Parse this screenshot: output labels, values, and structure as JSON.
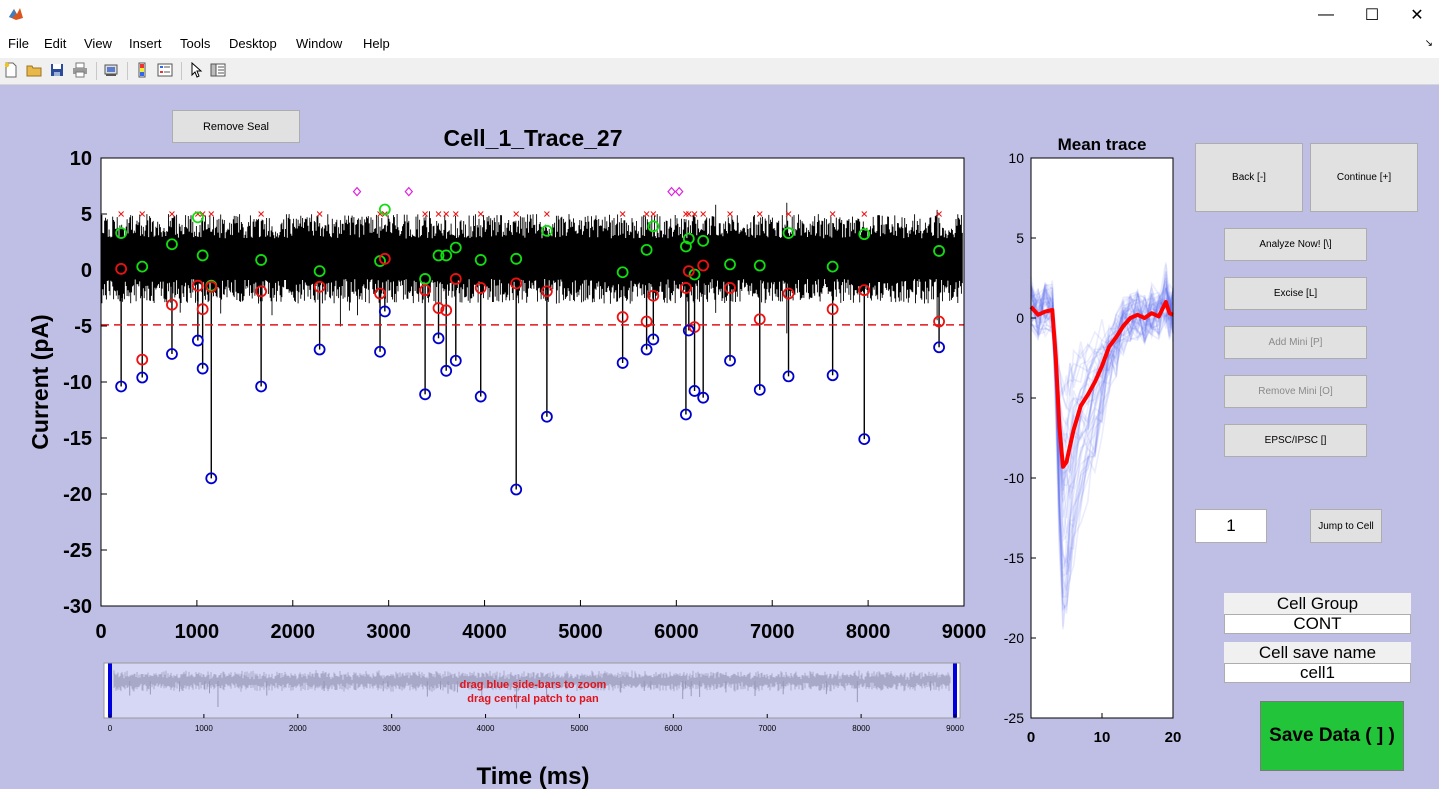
{
  "window": {
    "controls": {
      "minimize": "—",
      "maximize": "☐",
      "close": "✕"
    }
  },
  "menu": [
    "File",
    "Edit",
    "View",
    "Insert",
    "Tools",
    "Desktop",
    "Window",
    "Help"
  ],
  "toolbar_icons": [
    "new-file-icon",
    "open-folder-icon",
    "save-icon",
    "print-icon",
    "print-preview-icon",
    "colorbar-icon",
    "legend-icon",
    "pointer-icon",
    "property-editor-icon"
  ],
  "buttons": {
    "remove_seal": "Remove Seal",
    "back": "Back [-]",
    "continue": "Continue [+]",
    "analyze_now": "Analyze Now! [\\]",
    "excise": "Excise [L]",
    "add_mini": "Add Mini [P]",
    "remove_mini": "Remove Mini [O]",
    "epsc_ipsc": "EPSC/IPSC []",
    "jump_to_cell": "Jump to Cell",
    "save_data": "Save Data ( ] )"
  },
  "fields": {
    "cell_index_value": "1",
    "cell_group_label": "Cell Group",
    "cell_group_value": "CONT",
    "cell_save_name_label": "Cell save name",
    "cell_save_name_value": "cell1"
  },
  "colors": {
    "figure_bg": "#bfbfe6",
    "trace": "#000000",
    "threshold": "#e0141c",
    "mean_trace": "#ff0000",
    "overlay_traces": "#5a6ef0",
    "save_button": "#22c43a",
    "peak_marker": "#0000cc",
    "onset_marker": "#ee1111",
    "baseline_marker": "#11dd11",
    "rejected_marker": "#e020e0",
    "zoom_bar": "#0000dd"
  },
  "chart_data": [
    {
      "type": "line",
      "title": "Cell_1_Trace_27",
      "xlabel": "Time (ms)",
      "ylabel": "Current (pA)",
      "xlim": [
        0,
        9000
      ],
      "ylim": [
        -30,
        10
      ],
      "xticks": [
        "0",
        "1000",
        "2000",
        "3000",
        "4000",
        "5000",
        "6000",
        "7000",
        "8000",
        "9000"
      ],
      "yticks": [
        "10",
        "5",
        "0",
        "-5",
        "-10",
        "-15",
        "-20",
        "-25",
        "-30"
      ],
      "threshold_y": -4.9,
      "trace_band": {
        "x_start": 0,
        "x_end": 8990,
        "y_low": -3,
        "y_high": 5
      },
      "peaks": [
        {
          "x": 210,
          "y": -10.4
        },
        {
          "x": 430,
          "y": -9.6
        },
        {
          "x": 740,
          "y": -7.5
        },
        {
          "x": 1010,
          "y": -6.3
        },
        {
          "x": 1060,
          "y": -8.8
        },
        {
          "x": 1150,
          "y": -18.6
        },
        {
          "x": 1670,
          "y": -10.4
        },
        {
          "x": 2280,
          "y": -7.1
        },
        {
          "x": 2910,
          "y": -7.3
        },
        {
          "x": 2960,
          "y": -3.7
        },
        {
          "x": 3380,
          "y": -11.1
        },
        {
          "x": 3520,
          "y": -6.1
        },
        {
          "x": 3600,
          "y": -9
        },
        {
          "x": 3700,
          "y": -8.1
        },
        {
          "x": 3960,
          "y": -11.3
        },
        {
          "x": 4330,
          "y": -19.6
        },
        {
          "x": 4650,
          "y": -13.1
        },
        {
          "x": 5440,
          "y": -8.3
        },
        {
          "x": 5690,
          "y": -7.1
        },
        {
          "x": 5760,
          "y": -6.2
        },
        {
          "x": 6100,
          "y": -12.9
        },
        {
          "x": 6130,
          "y": -5.4
        },
        {
          "x": 6190,
          "y": -10.8
        },
        {
          "x": 6280,
          "y": -11.4
        },
        {
          "x": 6560,
          "y": -8.1
        },
        {
          "x": 6870,
          "y": -10.7
        },
        {
          "x": 7170,
          "y": -9.5
        },
        {
          "x": 7630,
          "y": -9.4
        },
        {
          "x": 7960,
          "y": -15.1
        },
        {
          "x": 8740,
          "y": -6.9
        }
      ],
      "onsets": [
        {
          "x": 210,
          "y": 0.1
        },
        {
          "x": 430,
          "y": -8
        },
        {
          "x": 740,
          "y": -3.1
        },
        {
          "x": 1010,
          "y": -1.4
        },
        {
          "x": 1060,
          "y": -3.5
        },
        {
          "x": 1150,
          "y": -1.5
        },
        {
          "x": 1670,
          "y": -1.9
        },
        {
          "x": 2280,
          "y": -1.5
        },
        {
          "x": 2910,
          "y": -2.1
        },
        {
          "x": 2960,
          "y": 1
        },
        {
          "x": 3380,
          "y": -1.8
        },
        {
          "x": 3520,
          "y": -3.4
        },
        {
          "x": 3600,
          "y": -3.6
        },
        {
          "x": 3700,
          "y": -0.8
        },
        {
          "x": 3960,
          "y": -1.6
        },
        {
          "x": 4330,
          "y": -1.2
        },
        {
          "x": 4650,
          "y": -1.9
        },
        {
          "x": 5440,
          "y": -4.2
        },
        {
          "x": 5690,
          "y": -4.6
        },
        {
          "x": 5760,
          "y": -2.3
        },
        {
          "x": 6100,
          "y": -1.6
        },
        {
          "x": 6130,
          "y": -0.1
        },
        {
          "x": 6190,
          "y": -5.1
        },
        {
          "x": 6280,
          "y": 0.4
        },
        {
          "x": 6560,
          "y": -1.6
        },
        {
          "x": 6870,
          "y": -4.4
        },
        {
          "x": 7170,
          "y": -2.1
        },
        {
          "x": 7630,
          "y": -3.5
        },
        {
          "x": 7960,
          "y": -1.8
        },
        {
          "x": 8740,
          "y": -4.6
        }
      ],
      "baselines": [
        {
          "x": 210,
          "y": 3.3
        },
        {
          "x": 430,
          "y": 0.3
        },
        {
          "x": 740,
          "y": 2.3
        },
        {
          "x": 1010,
          "y": 4.7
        },
        {
          "x": 1060,
          "y": 1.3
        },
        {
          "x": 1150,
          "y": -1.4
        },
        {
          "x": 1670,
          "y": 0.9
        },
        {
          "x": 2280,
          "y": -0.1
        },
        {
          "x": 2910,
          "y": 0.8
        },
        {
          "x": 2960,
          "y": 5.4
        },
        {
          "x": 3380,
          "y": -0.8
        },
        {
          "x": 3520,
          "y": 1.3
        },
        {
          "x": 3600,
          "y": 1.3
        },
        {
          "x": 3700,
          "y": 2
        },
        {
          "x": 3960,
          "y": 0.9
        },
        {
          "x": 4330,
          "y": 1
        },
        {
          "x": 4650,
          "y": 3.5
        },
        {
          "x": 5440,
          "y": -0.2
        },
        {
          "x": 5690,
          "y": 1.8
        },
        {
          "x": 5760,
          "y": 3.9
        },
        {
          "x": 6100,
          "y": 2.1
        },
        {
          "x": 6130,
          "y": 2.8
        },
        {
          "x": 6190,
          "y": -0.4
        },
        {
          "x": 6280,
          "y": 2.6
        },
        {
          "x": 6560,
          "y": 0.5
        },
        {
          "x": 6870,
          "y": 0.4
        },
        {
          "x": 7170,
          "y": 3.3
        },
        {
          "x": 7630,
          "y": 0.3
        },
        {
          "x": 7960,
          "y": 3.2
        },
        {
          "x": 8740,
          "y": 1.7
        }
      ],
      "rejected": [
        {
          "x": 2670,
          "y": 7
        },
        {
          "x": 3210,
          "y": 7
        },
        {
          "x": 5950,
          "y": 7
        },
        {
          "x": 6030,
          "y": 7
        }
      ],
      "cross_y": 5,
      "crosses_x": [
        210,
        430,
        740,
        1010,
        1060,
        1150,
        1670,
        2280,
        2910,
        2960,
        3380,
        3520,
        3600,
        3700,
        3960,
        4330,
        4650,
        5440,
        5690,
        5760,
        6100,
        6130,
        6190,
        6280,
        6560,
        6870,
        7170,
        7630,
        7960,
        8740
      ]
    },
    {
      "type": "line",
      "title": "Mean trace",
      "xlim": [
        0,
        20
      ],
      "ylim": [
        -25,
        10
      ],
      "xticks": [
        "0",
        "10",
        "20"
      ],
      "yticks": [
        "10",
        "5",
        "0",
        "-5",
        "-10",
        "-15",
        "-20",
        "-25"
      ],
      "mean": {
        "x": [
          0,
          1,
          2,
          3,
          3.5,
          4,
          4.5,
          5,
          5.5,
          6,
          7,
          8,
          9,
          10,
          11,
          12,
          13,
          14,
          15,
          16,
          17,
          18,
          19,
          19.5,
          20
        ],
        "y": [
          0.7,
          0.2,
          0.4,
          0.5,
          -2.5,
          -6.8,
          -9.3,
          -9,
          -8,
          -7,
          -5.5,
          -4.8,
          -4,
          -3,
          -1.8,
          -1.2,
          -0.5,
          0,
          0.2,
          0,
          0.3,
          0.1,
          1,
          0.3,
          0.2
        ]
      }
    },
    {
      "type": "line",
      "title": "drag blue side-bars to zoom",
      "subtitle": "drag central patch to pan",
      "xlim": [
        0,
        9000
      ],
      "xticks": [
        "0",
        "1000",
        "2000",
        "3000",
        "4000",
        "5000",
        "6000",
        "7000",
        "8000",
        "9000"
      ],
      "zoom_range": [
        0,
        9000
      ]
    }
  ]
}
